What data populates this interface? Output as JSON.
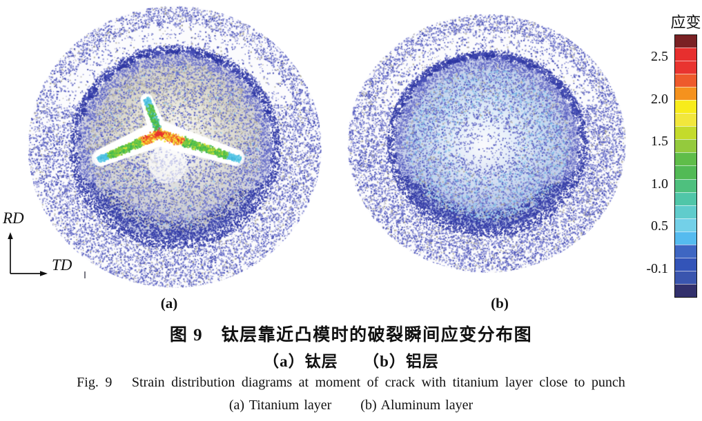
{
  "figure": {
    "colorbar": {
      "title": "应变",
      "tick_labels": [
        "2.5",
        "2.0",
        "1.5",
        "1.0",
        "0.5",
        "-0.1"
      ],
      "tick_positions": [
        0.084,
        0.245,
        0.406,
        0.568,
        0.729,
        0.89
      ],
      "segment_colors": [
        "#7A2124",
        "#E72F2E",
        "#E93430",
        "#EE5A2C",
        "#F5921E",
        "#F8EC1B",
        "#F2E73C",
        "#C4DB2B",
        "#94CA3D",
        "#5FBD49",
        "#52BA55",
        "#4EC07E",
        "#50C6A8",
        "#60CCCC",
        "#73D0E8",
        "#55BBEF",
        "#3E66C2",
        "#3354B8",
        "#3A55AE",
        "#32306C"
      ]
    },
    "axis_labels": {
      "vertical": "RD",
      "horizontal": "TD"
    },
    "panel_labels": {
      "a": "(a)",
      "b": "(b)"
    },
    "captions": {
      "zh_title": "图 9　钛层靠近凸模时的破裂瞬间应变分布图",
      "zh_sub": "（a）钛层　　（b）铝层",
      "en_title": "Fig. 9   Strain distribution diagrams at moment of crack with titanium layer close to punch",
      "en_sub": "(a) Titanium layer      (b) Aluminum layer"
    },
    "palettes": {
      "flange_blues": [
        "#7177CC",
        "#585FC2",
        "#8A8FD6",
        "#4950B4",
        "#9A9EDB"
      ],
      "ring_dark": [
        "#3D45AD",
        "#333BA4",
        "#4A52B8",
        "#2E37A2"
      ],
      "dome_blues": [
        "#6A70C8",
        "#545CC0",
        "#8287D2",
        "#7B80CF"
      ],
      "dome_grays": [
        "#B2AFA4",
        "#C1BEB3",
        "#A6A399",
        "#BDB9AC"
      ],
      "light_blues": [
        "#7AB8E4",
        "#92C8EC",
        "#A9D4F0"
      ],
      "crack_hot": [
        "#E8342E",
        "#F05A2B",
        "#F6921E",
        "#F2E13A",
        "#F7EC3F"
      ],
      "crack_green": [
        "#4FBE4D",
        "#63C747",
        "#85CB3F",
        "#3CB456"
      ],
      "crack_cyan": [
        "#52C5E6",
        "#73D0EA",
        "#45B8DC"
      ]
    }
  },
  "chart_data": {
    "type": "heatmap",
    "title": "图9 钛层靠近凸模时的破裂瞬间应变分布图 / Fig. 9 Strain distribution diagrams at moment of crack with titanium layer close to punch",
    "colorbar": {
      "label": "应变",
      "tick_values": [
        2.5,
        2.0,
        1.5,
        1.0,
        0.5,
        -0.1
      ],
      "value_range": [
        -0.1,
        2.75
      ],
      "n_segments": 20
    },
    "axes": {
      "vertical": "RD",
      "horizontal": "TD"
    },
    "panels": [
      {
        "label": "(a)",
        "layer_zh": "钛层",
        "layer_en": "Titanium layer",
        "observation": "three-armed crack at dome centre; strain peaks ~2.5 (red/orange/yellow) along crack core, green ~1.2-1.6 on arms, cyan ~0.8 at arm tips; rest of blank low strain (blue speckle)"
      },
      {
        "label": "(b)",
        "layer_zh": "铝层",
        "layer_en": "Aluminum layer",
        "observation": "no crack; low uniform strain over dome (blue with light-cyan mid region), near zero at centre and flange"
      }
    ]
  }
}
